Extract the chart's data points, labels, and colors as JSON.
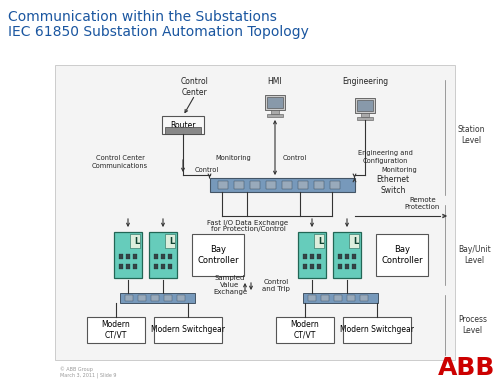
{
  "title_line1": "Communication within the Substations",
  "title_line2": "IEC 61850 Substation Automation Topology",
  "title_color": "#1a56a0",
  "bg_color": "#ffffff",
  "abb_red": "#cc0000",
  "footer_text": "© ABB Group\nMarch 3, 2011 | Slide 9",
  "diagram_bg": "#f0f0f0",
  "switch_color": "#6699aa",
  "switch_edge": "#445566",
  "ied_face": "#55bbaa",
  "ied_edge": "#226655",
  "box_face": "#ffffff",
  "box_edge": "#555555",
  "arrow_color": "#333333",
  "label_color": "#222222",
  "level_label_color": "#333333"
}
